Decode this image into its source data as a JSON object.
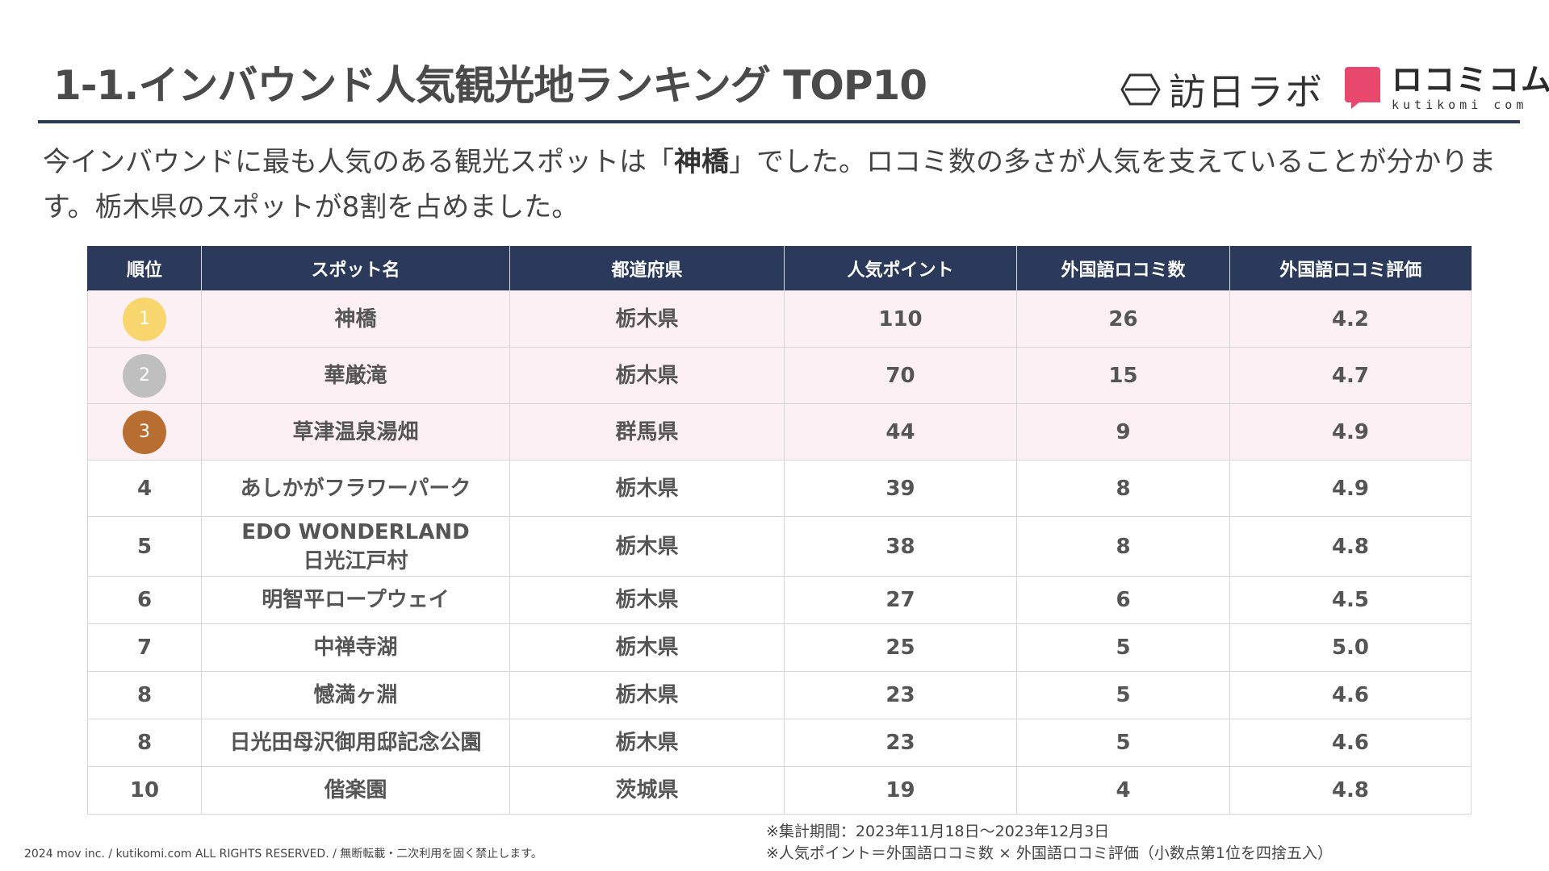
{
  "header": {
    "title": "1-1.インバウンド人気観光地ランキング TOP10",
    "logo_houjitsu": "訪日ラボ",
    "logo_kuchikomi_main": "ロコミコム",
    "logo_kuchikomi_sub": "kutikomi com"
  },
  "intro": {
    "text_before": "今インバウンドに最も人気のある観光スポットは「",
    "highlight": "神橋",
    "text_after": "」でした。ロコミ数の多さが人気を支えていることが分かります。栃木県のスポットが8割を占めました。"
  },
  "table": {
    "headers": [
      "順位",
      "スポット名",
      "都道府県",
      "人気ポイント",
      "外国語ロコミ数",
      "外国語ロコミ評価"
    ],
    "rows": [
      {
        "rank": "1",
        "name": "神橋",
        "pref": "栃木県",
        "points": "110",
        "count": "26",
        "rating": "4.2"
      },
      {
        "rank": "2",
        "name": "華厳滝",
        "pref": "栃木県",
        "points": "70",
        "count": "15",
        "rating": "4.7"
      },
      {
        "rank": "3",
        "name": "草津温泉湯畑",
        "pref": "群馬県",
        "points": "44",
        "count": "9",
        "rating": "4.9"
      },
      {
        "rank": "4",
        "name": "あしかがフラワーパーク",
        "pref": "栃木県",
        "points": "39",
        "count": "8",
        "rating": "4.9"
      },
      {
        "rank": "5",
        "name": "EDO WONDERLAND",
        "name2": "日光江戸村",
        "pref": "栃木県",
        "points": "38",
        "count": "8",
        "rating": "4.8"
      },
      {
        "rank": "6",
        "name": "明智平ロープウェイ",
        "pref": "栃木県",
        "points": "27",
        "count": "6",
        "rating": "4.5"
      },
      {
        "rank": "7",
        "name": "中禅寺湖",
        "pref": "栃木県",
        "points": "25",
        "count": "5",
        "rating": "5.0"
      },
      {
        "rank": "8",
        "name": "憾満ヶ淵",
        "pref": "栃木県",
        "points": "23",
        "count": "5",
        "rating": "4.6"
      },
      {
        "rank": "8",
        "name": "日光田母沢御用邸記念公園",
        "pref": "栃木県",
        "points": "23",
        "count": "5",
        "rating": "4.6"
      },
      {
        "rank": "10",
        "name": "偕楽園",
        "pref": "茨城県",
        "points": "19",
        "count": "4",
        "rating": "4.8"
      }
    ]
  },
  "footer": {
    "copyright": "2024 mov inc. / kutikomi.com ALL RIGHTS RESERVED. / 無断転載・二次利用を固く禁止します。",
    "note1": "※集計期間：2023年11月18日～2023年12月3日",
    "note2": "※人気ポイント＝外国語ロコミ数 × 外国語ロコミ評価（小数点第1位を四捨五入）"
  },
  "colors": {
    "header_bg": "#2b3a5a",
    "top3_bg": "#fdf0f4",
    "gold": "#f8d66d",
    "silver": "#bfbfbf",
    "bronze": "#b86e30",
    "logo_pink": "#e8476e"
  }
}
